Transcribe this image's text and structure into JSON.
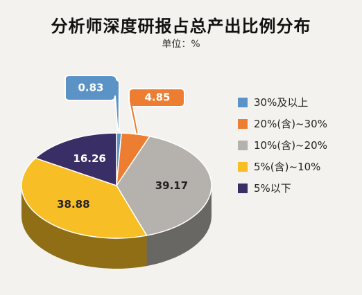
{
  "title": "分析师深度研报占总产出比例分布",
  "unit": "单位：%",
  "chart_data": {
    "type": "pie",
    "title": "分析师深度研报占总产出比例分布",
    "unit": "%",
    "legend_position": "right",
    "slices": [
      {
        "label": "30%及以上",
        "value": 0.83,
        "value_text": "0.83",
        "color": "#5b93c7"
      },
      {
        "label": "20%(含)~30%",
        "value": 4.85,
        "value_text": "4.85",
        "color": "#ed7d31"
      },
      {
        "label": "10%(含)~20%",
        "value": 39.17,
        "value_text": "39.17",
        "color": "#b5b1ad"
      },
      {
        "label": "5%(含)~10%",
        "value": 38.88,
        "value_text": "38.88",
        "color": "#f7be25"
      },
      {
        "label": "5%以下",
        "value": 16.26,
        "value_text": "16.26",
        "color": "#3a2e66"
      }
    ]
  }
}
